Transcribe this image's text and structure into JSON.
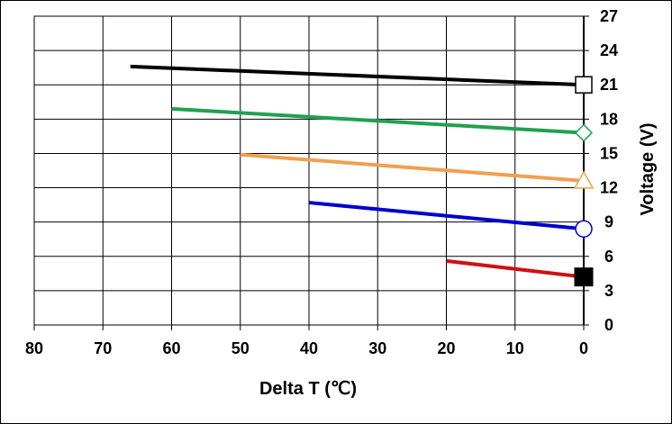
{
  "chart_data": {
    "type": "line",
    "title": "",
    "xlabel": "Delta T (℃)",
    "ylabel": "Voltage (V)",
    "xlim": [
      80,
      0
    ],
    "ylim": [
      0,
      27
    ],
    "x_ticks": [
      80,
      70,
      60,
      50,
      40,
      30,
      20,
      10,
      0
    ],
    "y_ticks": [
      0,
      3,
      6,
      9,
      12,
      15,
      18,
      21,
      24,
      27
    ],
    "x_reversed": true,
    "y_axis_side": "right",
    "grid": true,
    "legend": "none",
    "series": [
      {
        "color": "#000000",
        "marker": "square-open",
        "x": [
          66,
          0
        ],
        "y": [
          22.6,
          21.0
        ]
      },
      {
        "color": "#22a050",
        "marker": "diamond-open",
        "x": [
          60,
          0
        ],
        "y": [
          18.9,
          16.8
        ]
      },
      {
        "color": "#f0a050",
        "marker": "triangle-open",
        "x": [
          50,
          0
        ],
        "y": [
          14.9,
          12.6
        ]
      },
      {
        "color": "#0000cc",
        "marker": "circle-open",
        "x": [
          40,
          0
        ],
        "y": [
          10.7,
          8.4
        ]
      },
      {
        "color": "#d01010",
        "marker": "square-filled",
        "x": [
          20,
          0
        ],
        "y": [
          5.6,
          4.2
        ]
      }
    ]
  }
}
